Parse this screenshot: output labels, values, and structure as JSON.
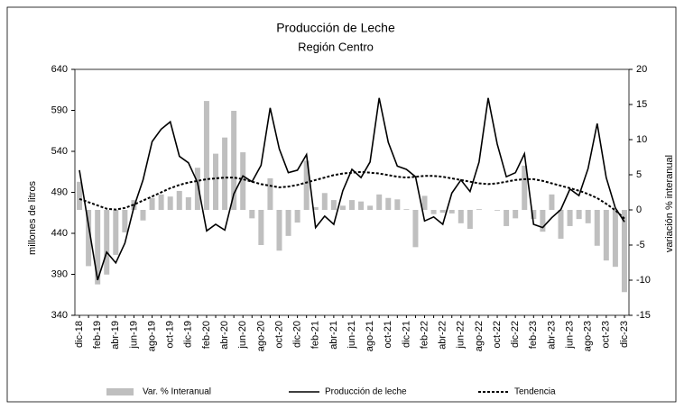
{
  "chart_data": {
    "type": "combo",
    "title": "Producción de Leche",
    "subtitle": "Región Centro",
    "y_label": "millones de litros",
    "y2_label": "variación % interanual",
    "categories": [
      "dic-18",
      null,
      "feb-19",
      null,
      "abr-19",
      null,
      "jun-19",
      null,
      "ago-19",
      null,
      "oct-19",
      null,
      "dic-19",
      null,
      "feb-20",
      null,
      "abr-20",
      null,
      "jun-20",
      null,
      "ago-20",
      null,
      "oct-20",
      null,
      "dic-20",
      null,
      "feb-21",
      null,
      "abr-21",
      null,
      "jun-21",
      null,
      "ago-21",
      null,
      "oct-21",
      null,
      "dic-21",
      null,
      "feb-22",
      null,
      "abr-22",
      null,
      "jun-22",
      null,
      "ago-22",
      null,
      "oct-22",
      null,
      "dic-22",
      null,
      "feb-23",
      null,
      "abr-23",
      null,
      "jun-23",
      null,
      "ago-23",
      null,
      "oct-23",
      null,
      "dic-23"
    ],
    "series": [
      {
        "name": "Var. % Interanual",
        "type": "bar",
        "axis": "y2",
        "color": "#bfbfbf",
        "values": [
          4,
          -8,
          -10.6,
          -9.2,
          -6.4,
          -3.2,
          1.4,
          -1.5,
          1.7,
          2.2,
          1.9,
          2.7,
          1.8,
          6,
          15.5,
          8,
          10.3,
          14.1,
          8.2,
          -1.2,
          -5,
          4.5,
          -5.8,
          -3.7,
          -1.8,
          7,
          0.4,
          2.4,
          1.4,
          0.6,
          1.4,
          1.2,
          0.6,
          2.2,
          1.7,
          1.5,
          0.1,
          -5.3,
          2,
          -0.6,
          -0.4,
          -0.5,
          -1.9,
          -2.7,
          0.1,
          0,
          -0.1,
          -2.3,
          -1.2,
          6.3,
          -1.3,
          -3.1,
          2.2,
          -4.1,
          -2.3,
          -1.3,
          -1.9,
          -5.1,
          -7.2,
          -8.1,
          -11.7
        ]
      },
      {
        "name": "Producción de leche",
        "type": "line",
        "color": "#000000",
        "line_style": "solid",
        "values": [
          517,
          450,
          383,
          417,
          404,
          428,
          472,
          505,
          552,
          567,
          576,
          534,
          526,
          502,
          443,
          451,
          444,
          488,
          510,
          503,
          523,
          593,
          543,
          514,
          517,
          536,
          447,
          461,
          451,
          492,
          518,
          508,
          527,
          605,
          551,
          522,
          518,
          509,
          455,
          460,
          451,
          489,
          505,
          491,
          527,
          605,
          549,
          509,
          514,
          537,
          451,
          447,
          459,
          469,
          494,
          486,
          519,
          574,
          508,
          471,
          454
        ]
      },
      {
        "name": "Tendencia",
        "type": "line",
        "color": "#000000",
        "line_style": "dashed",
        "values": [
          482,
          478,
          474,
          470,
          469,
          471,
          475,
          480,
          485,
          490,
          495,
          499,
          502,
          504,
          506,
          507,
          508,
          508,
          506,
          503,
          500,
          498,
          496,
          497,
          499,
          502,
          505,
          508,
          511,
          513,
          514,
          515,
          514,
          513,
          511,
          509,
          508,
          509,
          510,
          510,
          509,
          507,
          505,
          503,
          501,
          500,
          501,
          503,
          505,
          506,
          506,
          504,
          501,
          498,
          495,
          492,
          488,
          483,
          476,
          468,
          458
        ]
      }
    ],
    "ylim": [
      340,
      640
    ],
    "yticks": [
      340,
      390,
      440,
      490,
      540,
      590,
      640
    ],
    "y2lim": [
      -15,
      20
    ],
    "y2ticks": [
      -15,
      -10,
      -5,
      0,
      5,
      10,
      15,
      20
    ],
    "legend": "bottom"
  }
}
